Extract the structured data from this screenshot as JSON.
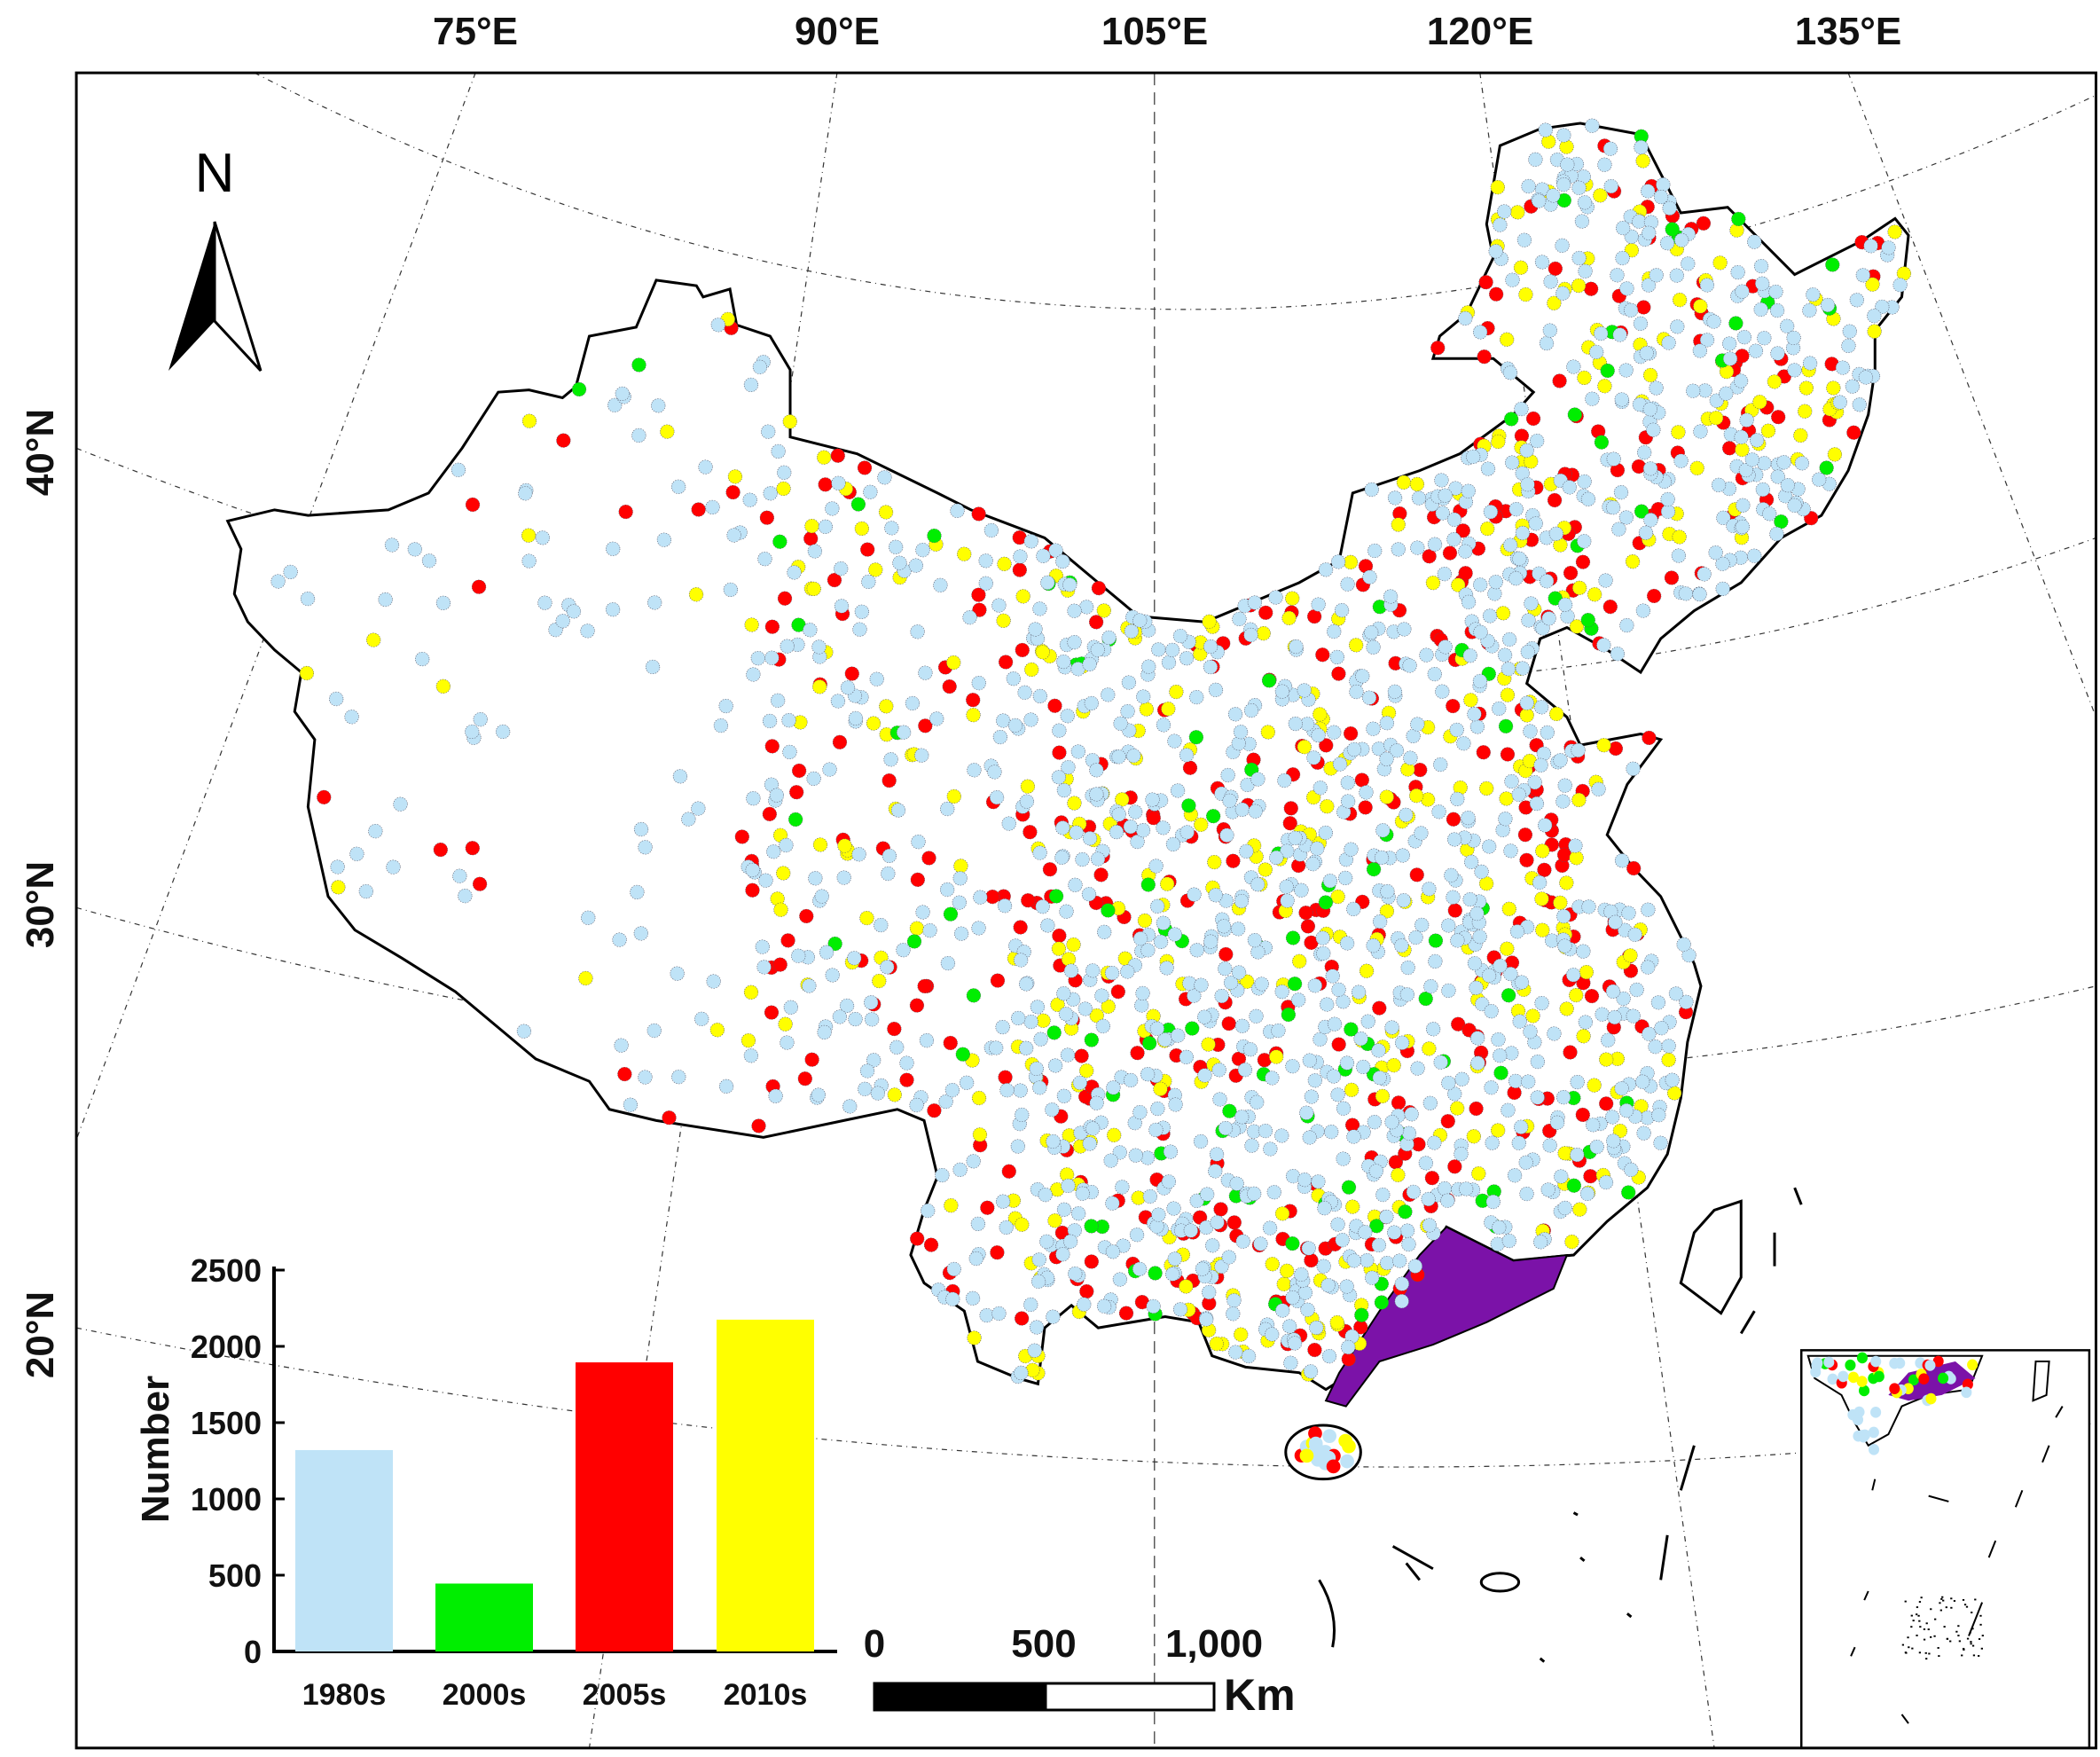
{
  "map": {
    "longitude_labels": [
      "75°E",
      "90°E",
      "105°E",
      "120°E",
      "135°E"
    ],
    "latitude_labels": [
      "40°N",
      "30°N",
      "20°N"
    ],
    "north_arrow_label": "N",
    "scale_bar": {
      "labels": [
        "0",
        "500",
        "1,000"
      ],
      "unit": "Km"
    },
    "colors": {
      "1980s": "#bfe3f7",
      "2000s": "#00ee00",
      "2005s": "#ff0000",
      "2010s": "#ffff00",
      "highlight_region": "#7b12a8"
    }
  },
  "chart_data": {
    "type": "bar",
    "title": "",
    "xlabel": "",
    "ylabel": "Number",
    "categories": [
      "1980s",
      "2000s",
      "2005s",
      "2010s"
    ],
    "values": [
      1320,
      445,
      1895,
      2175
    ],
    "colors": [
      "#bfe3f7",
      "#00ee00",
      "#ff0000",
      "#ffff00"
    ],
    "ylim": [
      0,
      2500
    ],
    "yticks": [
      "0",
      "500",
      "1000",
      "1500",
      "2000",
      "2500"
    ]
  }
}
